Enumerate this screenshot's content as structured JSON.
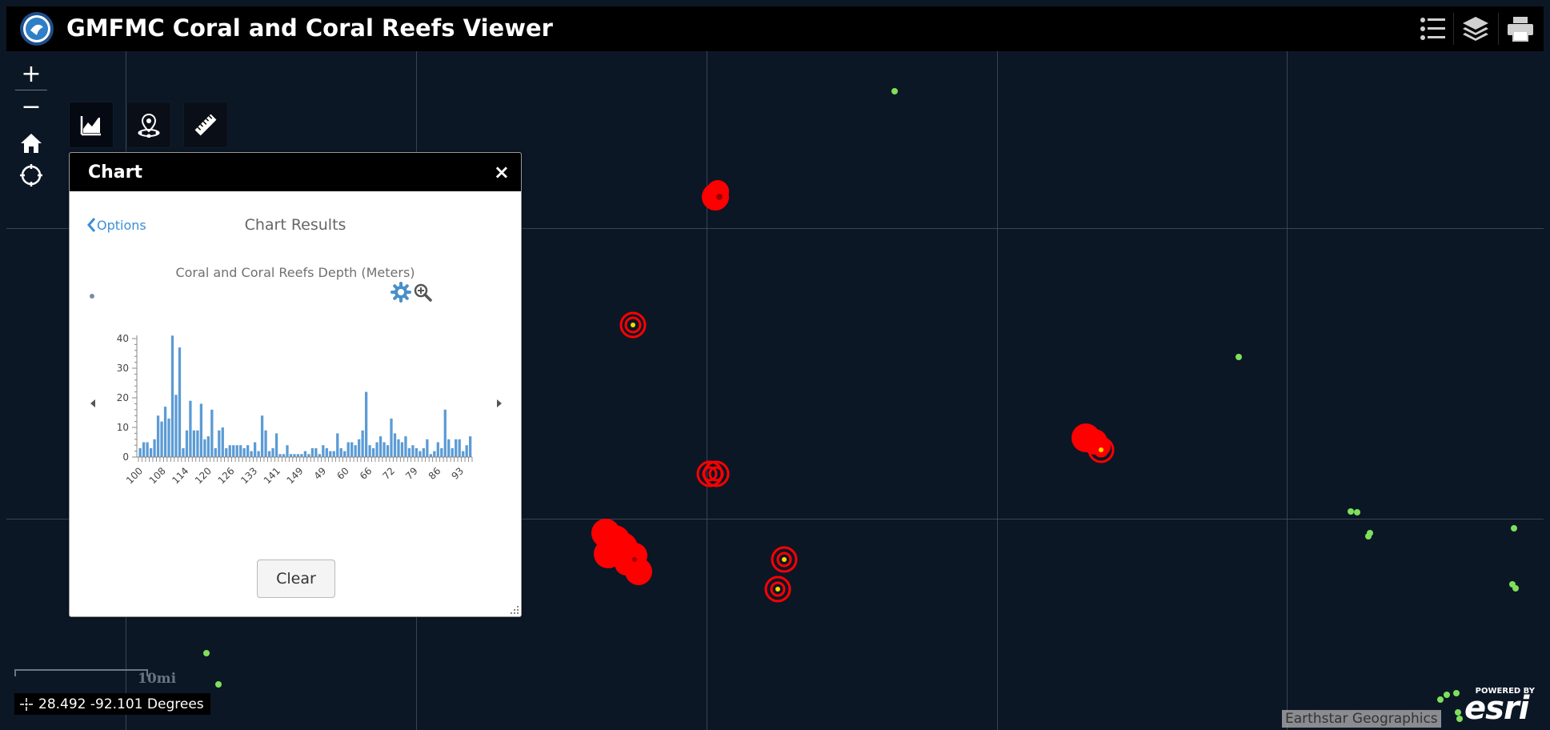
{
  "header": {
    "title": "GMFMC Coral and Coral Reefs Viewer",
    "logo_icon": "gmfmc-logo-icon",
    "buttons": [
      "legend-list-icon",
      "layers-icon",
      "print-icon"
    ]
  },
  "map_controls": {
    "zoom_in": "+",
    "zoom_out": "−",
    "home_icon": "home-icon",
    "locate_icon": "locate-icon"
  },
  "tools": [
    "chart-tool-icon",
    "place-pin-tool-icon",
    "measure-ruler-tool-icon"
  ],
  "chart_panel": {
    "title": "Chart",
    "close": "×",
    "options_label": "Options",
    "results_heading": "Chart Results",
    "clear_label": "Clear"
  },
  "chart_data": {
    "type": "bar",
    "title": "Coral and Coral Reefs Depth (Meters)",
    "xlabel": "",
    "ylabel": "",
    "ylim": [
      0,
      40
    ],
    "yticks": [
      0,
      10,
      20,
      30,
      40
    ],
    "xtick_labels": [
      "100",
      "108",
      "114",
      "120",
      "126",
      "133",
      "141",
      "149",
      "49",
      "60",
      "66",
      "72",
      "79",
      "86",
      "93"
    ],
    "values": [
      3,
      5,
      5,
      3,
      6,
      14,
      12,
      17,
      13,
      41,
      21,
      37,
      3,
      9,
      19,
      9,
      9,
      18,
      6,
      7,
      16,
      3,
      9,
      10,
      3,
      4,
      4,
      4,
      4,
      3,
      4,
      2,
      5,
      2,
      14,
      9,
      2,
      3,
      8,
      1,
      1,
      4,
      1,
      1,
      1,
      1,
      2,
      1,
      3,
      3,
      1,
      4,
      3,
      2,
      2,
      8,
      3,
      2,
      5,
      5,
      4,
      6,
      9,
      22,
      4,
      3,
      5,
      7,
      5,
      4,
      13,
      8,
      6,
      5,
      7,
      3,
      4,
      3,
      2,
      3,
      6,
      1,
      2,
      5,
      3,
      16,
      6,
      3,
      6,
      6,
      2,
      4,
      7
    ],
    "color": "#5b9bd5"
  },
  "status": {
    "scale_label": "10mi",
    "coordinates": "28.492 -92.101 Degrees",
    "attribution": "Earthstar Geographics",
    "esri_powered": "POWERED BY",
    "esri_word": "esri"
  },
  "colors": {
    "map_bg": "#0c1726",
    "header_bg": "#000000",
    "reef_red": "#ff0000",
    "site_green": "#7ee05a",
    "link_blue": "#3a8fd9"
  }
}
